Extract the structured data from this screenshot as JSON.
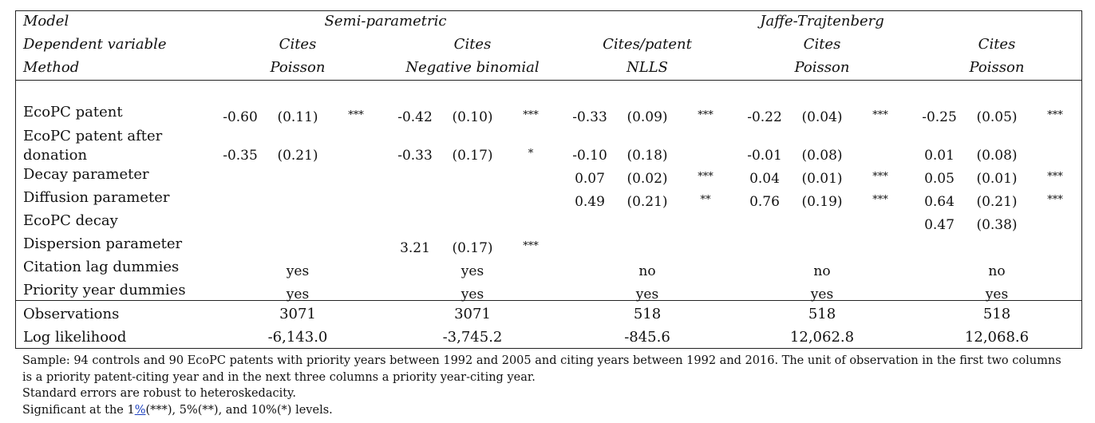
{
  "header": {
    "model_label": "Model",
    "dep_label": "Dependent variable",
    "method_label": "Method",
    "group_semi": "Semi-parametric",
    "group_jt": "Jaffe-Trajtenberg",
    "columns": [
      {
        "dep": "Cites",
        "method": "Poisson"
      },
      {
        "dep": "Cites",
        "method": "Negative binomial"
      },
      {
        "dep": "Cites/patent",
        "method": "NLLS"
      },
      {
        "dep": "Cites",
        "method": "Poisson"
      },
      {
        "dep": "Cites",
        "method": "Poisson"
      }
    ]
  },
  "rows": {
    "ecopc": {
      "label": "EcoPC patent",
      "cells": [
        {
          "c": "-0.60",
          "se": "(0.11)",
          "sig": "***"
        },
        {
          "c": "-0.42",
          "se": "(0.10)",
          "sig": "***"
        },
        {
          "c": "-0.33",
          "se": "(0.09)",
          "sig": "***"
        },
        {
          "c": "-0.22",
          "se": "(0.04)",
          "sig": "***"
        },
        {
          "c": "-0.25",
          "se": "(0.05)",
          "sig": "***"
        }
      ]
    },
    "after": {
      "label1": "EcoPC patent after",
      "label2": "donation",
      "cells": [
        {
          "c": "-0.35",
          "se": "(0.21)",
          "sig": ""
        },
        {
          "c": "-0.33",
          "se": "(0.17)",
          "sig": "*"
        },
        {
          "c": "-0.10",
          "se": "(0.18)",
          "sig": ""
        },
        {
          "c": "-0.01",
          "se": "(0.08)",
          "sig": ""
        },
        {
          "c": "0.01",
          "se": "(0.08)",
          "sig": ""
        }
      ]
    },
    "decay": {
      "label": "Decay parameter",
      "cells": [
        {
          "c": "0.07",
          "se": "(0.02)",
          "sig": "***"
        },
        {
          "c": "0.04",
          "se": "(0.01)",
          "sig": "***"
        },
        {
          "c": "0.05",
          "se": "(0.01)",
          "sig": "***"
        }
      ]
    },
    "diffusion": {
      "label": "Diffusion parameter",
      "cells": [
        {
          "c": "0.49",
          "se": "(0.21)",
          "sig": "**"
        },
        {
          "c": "0.76",
          "se": "(0.19)",
          "sig": "***"
        },
        {
          "c": "0.64",
          "se": "(0.21)",
          "sig": "***"
        }
      ]
    },
    "ecopc_decay": {
      "label": "EcoPC decay",
      "c": "0.47",
      "se": "(0.38)"
    },
    "dispersion": {
      "label": "Dispersion parameter",
      "c": "3.21",
      "se": "(0.17)",
      "sig": "***"
    },
    "citation_lag": {
      "label": "Citation lag dummies",
      "vals": [
        "yes",
        "yes",
        "no",
        "no",
        "no"
      ]
    },
    "priority_year": {
      "label": "Priority year dummies",
      "vals": [
        "yes",
        "yes",
        "yes",
        "yes",
        "yes"
      ]
    }
  },
  "stats": {
    "obs": {
      "label": "Observations",
      "vals": [
        "3071",
        "3071",
        "518",
        "518",
        "518"
      ]
    },
    "ll": {
      "label": "Log likelihood",
      "vals": [
        "-6,143.0",
        "-3,745.2",
        "-845.6",
        "12,062.8",
        "12,068.6"
      ]
    }
  },
  "notes": {
    "line1": "Sample: 94 controls and 90 EcoPC patents with priority years between 1992 and 2005 and citing years between 1992 and 2016. The unit of observation in the first two columns",
    "line2": "is a priority patent-citing year and in the next three columns a priority year-citing year.",
    "line3": "Standard errors are robust to heteroskedacity.",
    "line4_pre": "Significant at the 1",
    "line4_link": "%",
    "line4_post": "(***), 5%(**), and 10%(*) levels."
  }
}
